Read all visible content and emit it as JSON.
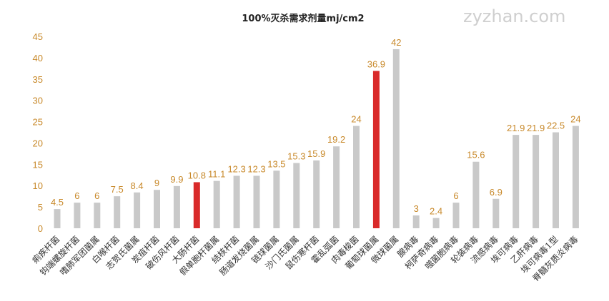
{
  "watermark": "zyzhan.com",
  "chart_data": {
    "type": "bar",
    "title": "100%灭杀需求剂量mj/cm2",
    "ylim": [
      0,
      45
    ],
    "yticks": [
      0,
      5,
      10,
      15,
      20,
      25,
      30,
      35,
      40,
      45
    ],
    "grid": false,
    "categories": [
      "痢疾杆菌",
      "钩端螺旋杆菌",
      "嗜肺军团菌属",
      "白喉杆菌",
      "志贺氏菌属",
      "炭疽杆菌",
      "破伤风杆菌",
      "大肠杆菌",
      "假单胞杆菌属",
      "结核杆菌",
      "肠道发烧菌属",
      "链球菌属",
      "沙门氏菌属",
      "鼠伤寒杆菌",
      "霍乱弧菌",
      "肉毒梭菌",
      "葡萄球菌属",
      "微球菌属",
      "腺病毒",
      "柯萨奇病毒",
      "噬菌胞病毒",
      "轮装病毒",
      "流感病毒",
      "埃可病毒",
      "乙肝病毒",
      "埃可病毒1型",
      "脊髓灰质炎病毒"
    ],
    "values": [
      4.5,
      6,
      6,
      7.5,
      8.4,
      9,
      9.9,
      10.8,
      11.1,
      12.3,
      12.3,
      13.5,
      15.3,
      15.9,
      19.2,
      24,
      36.9,
      42,
      3,
      2.4,
      6,
      15.6,
      6.9,
      21.9,
      21.9,
      22.5,
      24
    ],
    "labels": [
      "4.5",
      "6",
      "6",
      "7.5",
      "8.4",
      "9",
      "9.9",
      "10.8",
      "11.1",
      "12.3",
      "12.3",
      "13.5",
      "15.3",
      "15.9",
      "19.2",
      "24",
      "36.9",
      "42",
      "3",
      "2.4",
      "6",
      "15.6",
      "6.9",
      "21.9",
      "21.9",
      "22.5",
      "24"
    ],
    "highlight": [
      7,
      16
    ],
    "colors": {
      "bar": "#c9c9c9",
      "highlight": "#d92a2a",
      "label": "#c8892a",
      "axis_text": "#c8892a"
    }
  }
}
